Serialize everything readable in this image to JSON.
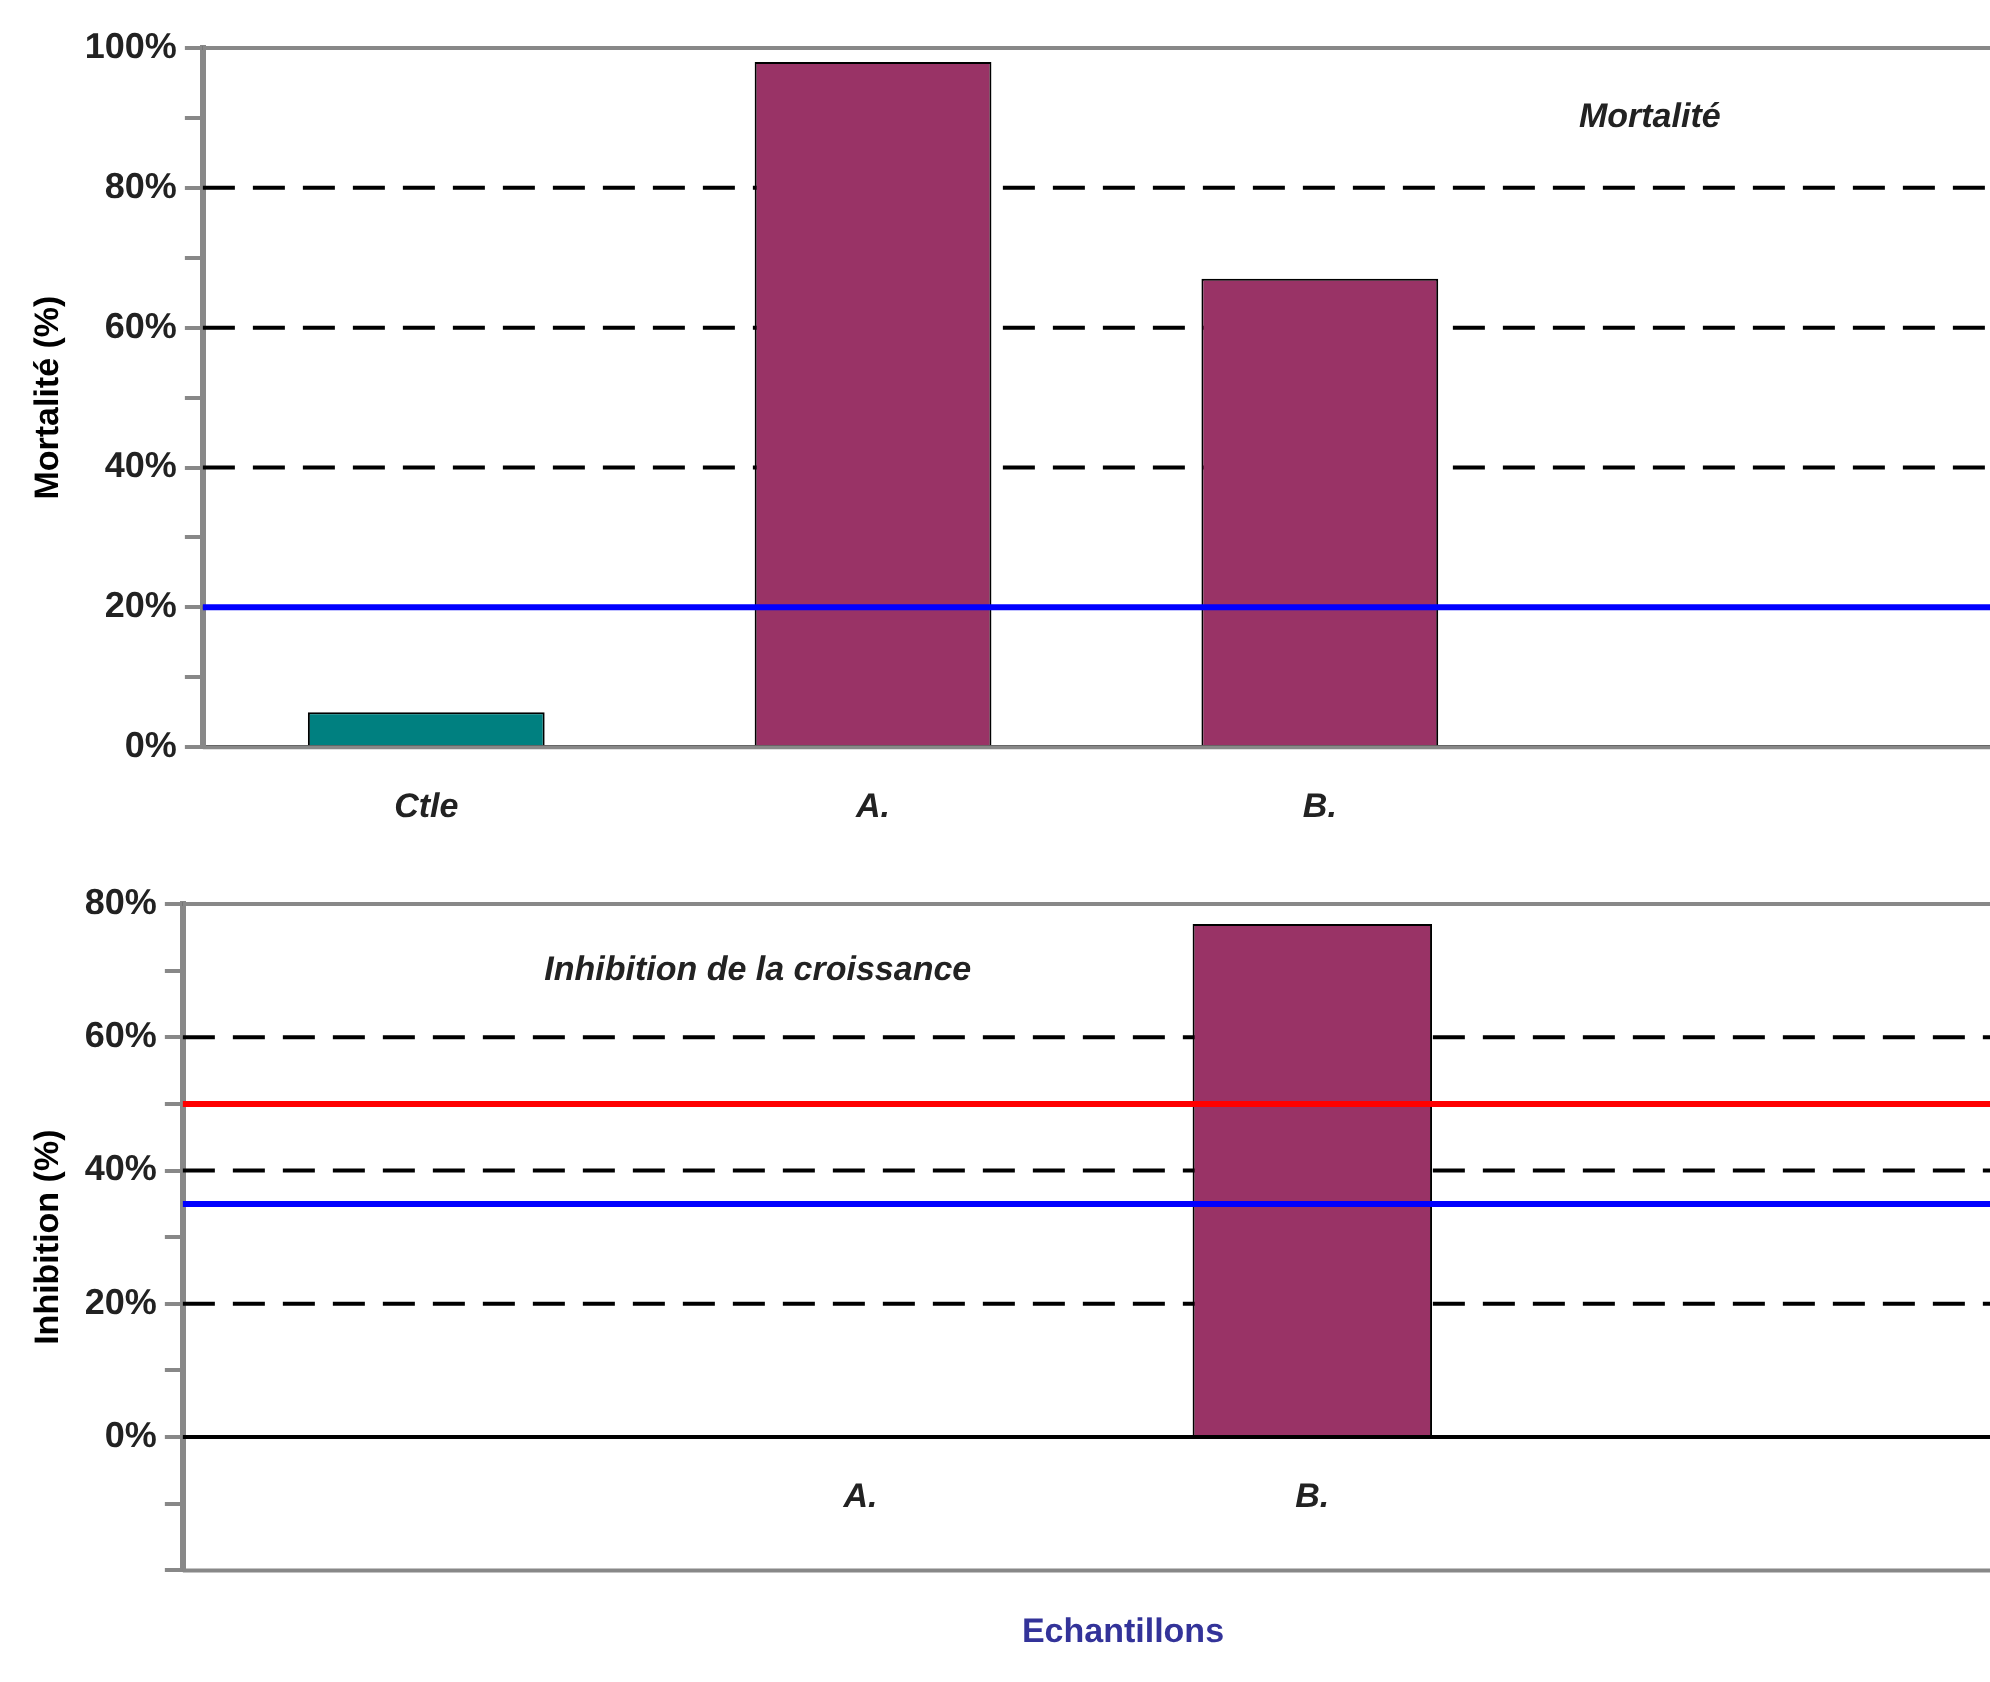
{
  "chart_data": [
    {
      "type": "bar",
      "ylabel": "Mortalité (%)",
      "annotations": [
        "Mortalité"
      ],
      "categories": [
        "Ctle",
        "A.",
        "B.",
        null
      ],
      "values": [
        5,
        98,
        67,
        null
      ],
      "colors": [
        "#008080",
        "#993366",
        "#993366",
        "#993366"
      ],
      "ylim": [
        0,
        100
      ],
      "yticks": [
        {
          "value": 0,
          "label": "0%"
        },
        {
          "value": 10,
          "label": null
        },
        {
          "value": 20,
          "label": "20%"
        },
        {
          "value": 30,
          "label": null
        },
        {
          "value": 40,
          "label": "40%"
        },
        {
          "value": 50,
          "label": null
        },
        {
          "value": 60,
          "label": "60%"
        },
        {
          "value": 70,
          "label": null
        },
        {
          "value": 80,
          "label": "80%"
        },
        {
          "value": 90,
          "label": null
        },
        {
          "value": 100,
          "label": "100%"
        }
      ],
      "grid": "y",
      "ref_lines": [
        {
          "axis": "y",
          "value": 20,
          "color": "#0000ff"
        }
      ]
    },
    {
      "type": "bar",
      "ylabel": "Inhibition (%)",
      "xlabel": "Echantillons",
      "annotations": [
        "Inhibition de la croissance"
      ],
      "categories": [
        null,
        "A.",
        "B.",
        null
      ],
      "values": [
        null,
        null,
        77,
        null
      ],
      "colors": [
        "#993366",
        "#993366",
        "#993366",
        "#993366"
      ],
      "ylim": [
        -20,
        80
      ],
      "yticks": [
        {
          "value": -20,
          "label": null
        },
        {
          "value": -10,
          "label": null
        },
        {
          "value": 0,
          "label": "0%"
        },
        {
          "value": 10,
          "label": null
        },
        {
          "value": 20,
          "label": "20%"
        },
        {
          "value": 30,
          "label": null
        },
        {
          "value": 40,
          "label": "40%"
        },
        {
          "value": 50,
          "label": null
        },
        {
          "value": 60,
          "label": "60%"
        },
        {
          "value": 70,
          "label": null
        },
        {
          "value": 80,
          "label": "80%"
        }
      ],
      "grid": "y",
      "ref_lines": [
        {
          "axis": "y",
          "value": 50,
          "color": "#ff0000"
        },
        {
          "axis": "y",
          "value": 35,
          "color": "#0000ff"
        }
      ]
    }
  ]
}
